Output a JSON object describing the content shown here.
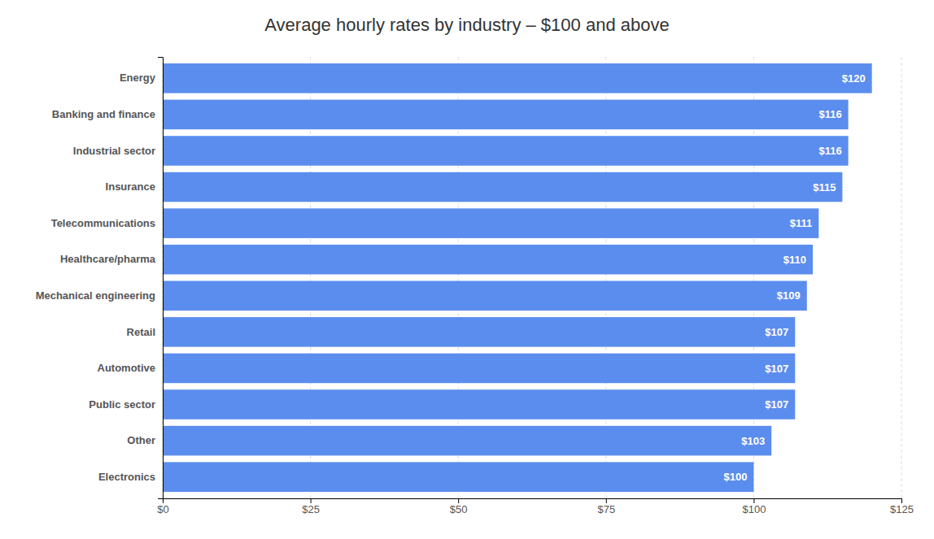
{
  "chart_data": {
    "type": "bar",
    "orientation": "horizontal",
    "title": "Average hourly rates by industry – $100 and above",
    "categories": [
      "Electronics",
      "Other",
      "Public sector",
      "Automotive",
      "Retail",
      "Mechanical engineering",
      "Healthcare/pharma",
      "Telecommunications",
      "Insurance",
      "Industrial sector",
      "Banking and finance",
      "Energy"
    ],
    "values": [
      100,
      103,
      107,
      107,
      107,
      109,
      110,
      111,
      115,
      116,
      116,
      120
    ],
    "value_labels": [
      "$100",
      "$103",
      "$107",
      "$107",
      "$107",
      "$109",
      "$110",
      "$111",
      "$115",
      "$116",
      "$116",
      "$120"
    ],
    "data_labels": true,
    "color": "#5b8dee",
    "xlim": [
      0,
      125
    ],
    "xticks": [
      {
        "value": 0,
        "label": "$0"
      },
      {
        "value": 25,
        "label": "$25"
      },
      {
        "value": 50,
        "label": "$50"
      },
      {
        "value": 75,
        "label": "$75"
      },
      {
        "value": 100,
        "label": "$100"
      },
      {
        "value": 125,
        "label": "$125"
      }
    ],
    "grid": true
  }
}
